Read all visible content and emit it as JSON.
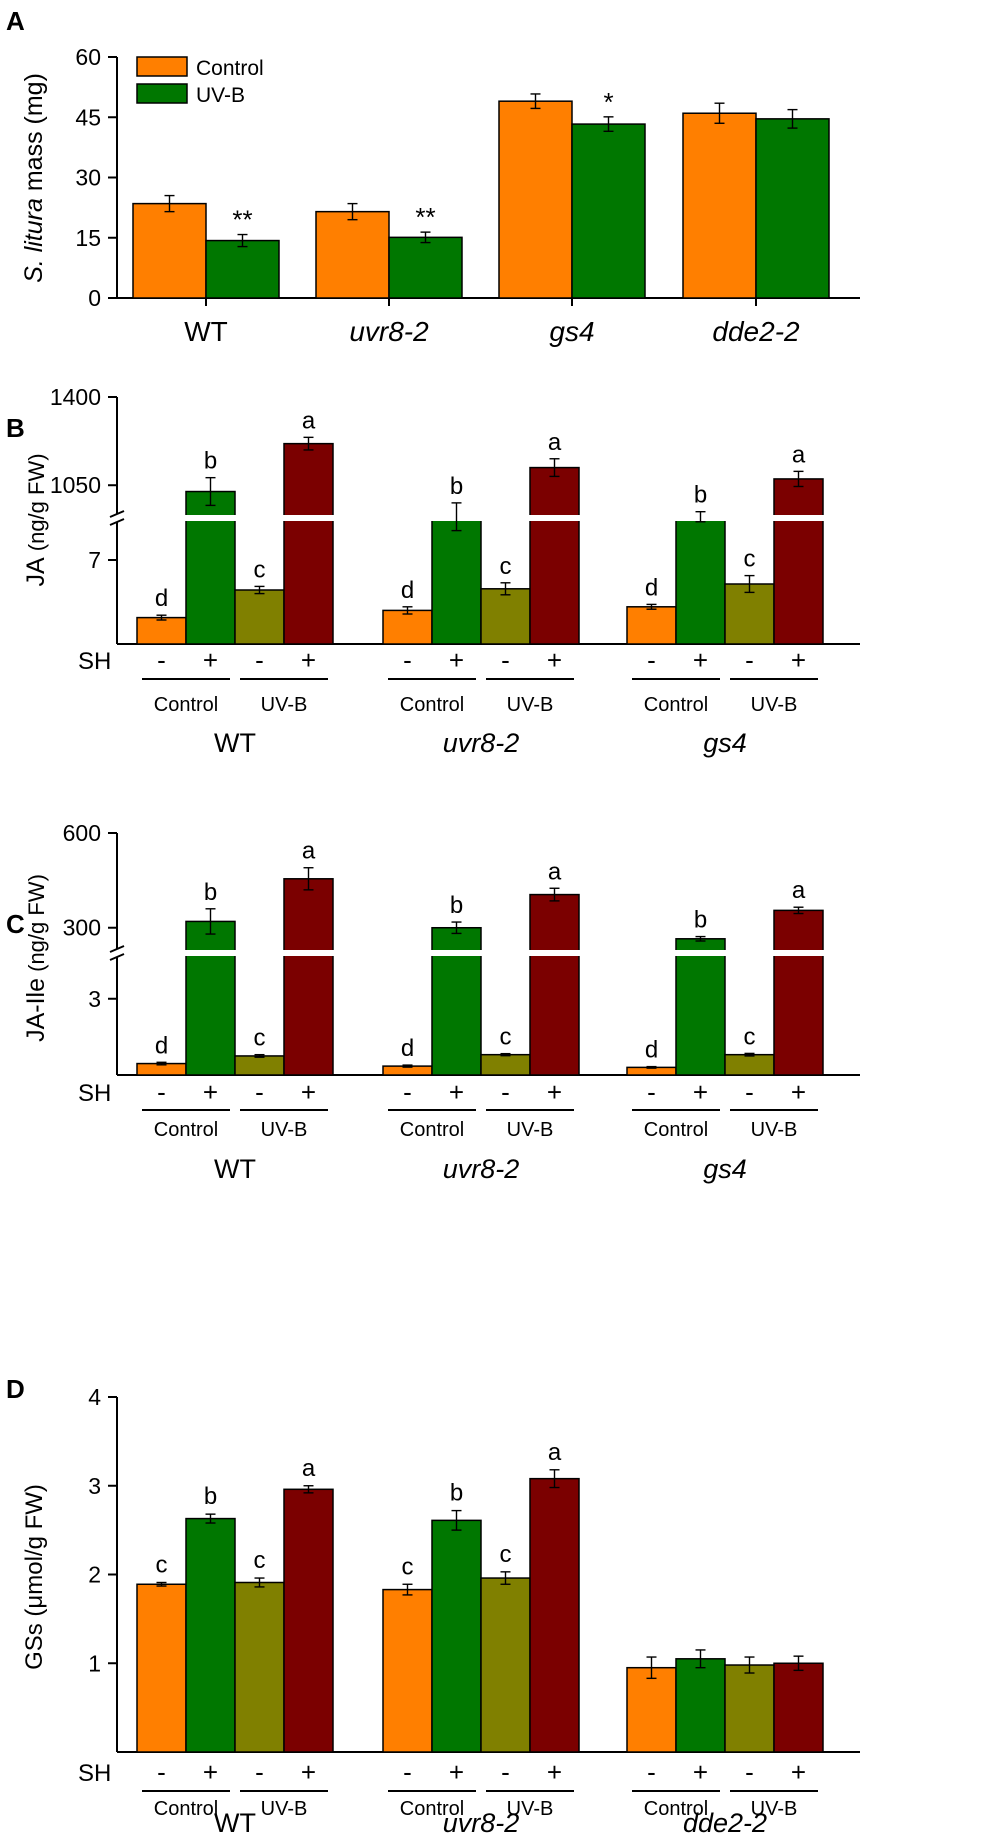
{
  "colors": {
    "control": "#ff7f00",
    "control_sh": "#007700",
    "uvb": "#808000",
    "uvb_sh": "#7b0000",
    "legend_control": "#ff7f00",
    "legend_uvb": "#007700"
  },
  "chart_data": [
    {
      "panel": "A",
      "type": "bar",
      "ylabel_italic": "S. litura",
      "ylabel_rest": " mass (mg)",
      "ylim": [
        0,
        60
      ],
      "yticks": [
        "0",
        "15",
        "30",
        "45",
        "60"
      ],
      "legend": [
        "Control",
        "UV-B"
      ],
      "categories": [
        {
          "label": "WT",
          "italic": false
        },
        {
          "label": "uvr8-2",
          "italic": true
        },
        {
          "label": "gs4",
          "italic": true
        },
        {
          "label": "dde2-2",
          "italic": true
        }
      ],
      "series": [
        {
          "name": "Control",
          "values": [
            23.5,
            21.5,
            49,
            46
          ],
          "errors": [
            2,
            2,
            1.8,
            2.5
          ],
          "labels": [
            "",
            "",
            "",
            ""
          ]
        },
        {
          "name": "UV-B",
          "values": [
            14.3,
            15.1,
            43.3,
            44.6
          ],
          "errors": [
            1.5,
            1.3,
            1.8,
            2.3
          ],
          "labels": [
            "**",
            "**",
            "*",
            ""
          ]
        }
      ]
    },
    {
      "panel": "B",
      "type": "bar",
      "ylabel_main": "JA",
      "ylabel_unit": " (ng/g FW)",
      "broken_axis": true,
      "lower_range": [
        0,
        10.5
      ],
      "upper_range": [
        920,
        1400
      ],
      "yticks_lower": [
        "7"
      ],
      "yticks_upper": [
        "1050",
        "1400"
      ],
      "sh_label": "SH",
      "sh_signs": [
        "-",
        "+",
        "-",
        "+"
      ],
      "treatment_labels": [
        "Control",
        "UV-B"
      ],
      "genotypes": [
        {
          "label": "WT",
          "italic": false,
          "values": [
            2.2,
            1025,
            4.5,
            1215
          ],
          "errors": [
            0.2,
            55,
            0.3,
            25
          ],
          "letters": [
            "d",
            "b",
            "c",
            "a"
          ]
        },
        {
          "label": "uvr8-2",
          "italic": true,
          "values": [
            2.8,
            925,
            4.6,
            1120
          ],
          "errors": [
            0.3,
            55,
            0.5,
            35
          ],
          "letters": [
            "d",
            "b",
            "c",
            "a"
          ]
        },
        {
          "label": "gs4",
          "italic": true,
          "values": [
            3.1,
            925,
            5.0,
            1075
          ],
          "errors": [
            0.2,
            20,
            0.7,
            30
          ],
          "letters": [
            "d",
            "b",
            "c",
            "a"
          ]
        }
      ]
    },
    {
      "panel": "C",
      "type": "bar",
      "ylabel_main": "JA-Ile",
      "ylabel_unit": " (ng/g FW)",
      "broken_axis": true,
      "lower_range": [
        0,
        4.8
      ],
      "upper_range": [
        220,
        600
      ],
      "yticks_lower": [
        "3"
      ],
      "yticks_upper": [
        "300",
        "600"
      ],
      "sh_label": "SH",
      "sh_signs": [
        "-",
        "+",
        "-",
        "+"
      ],
      "treatment_labels": [
        "Control",
        "UV-B"
      ],
      "genotypes": [
        {
          "label": "WT",
          "italic": false,
          "values": [
            0.45,
            320,
            0.75,
            455
          ],
          "errors": [
            0.05,
            40,
            0.05,
            35
          ],
          "letters": [
            "d",
            "b",
            "c",
            "a"
          ]
        },
        {
          "label": "uvr8-2",
          "italic": true,
          "values": [
            0.35,
            300,
            0.8,
            405
          ],
          "errors": [
            0.04,
            18,
            0.04,
            20
          ],
          "letters": [
            "d",
            "b",
            "c",
            "a"
          ]
        },
        {
          "label": "gs4",
          "italic": true,
          "values": [
            0.3,
            265,
            0.8,
            355
          ],
          "errors": [
            0.03,
            7,
            0.05,
            10
          ],
          "letters": [
            "d",
            "b",
            "c",
            "a"
          ]
        }
      ]
    },
    {
      "panel": "D",
      "type": "bar",
      "ylabel": "GSs (μmol/g FW)",
      "ylim": [
        0,
        4
      ],
      "yticks": [
        "1",
        "2",
        "3",
        "4"
      ],
      "sh_label": "SH",
      "sh_signs": [
        "-",
        "+",
        "-",
        "+"
      ],
      "treatment_labels": [
        "Control",
        "UV-B"
      ],
      "genotypes": [
        {
          "label": "WT",
          "italic": false,
          "values": [
            1.89,
            2.63,
            1.91,
            2.96
          ],
          "errors": [
            0.02,
            0.05,
            0.05,
            0.04
          ],
          "letters": [
            "c",
            "b",
            "c",
            "a"
          ]
        },
        {
          "label": "uvr8-2",
          "italic": true,
          "values": [
            1.83,
            2.61,
            1.96,
            3.08
          ],
          "errors": [
            0.06,
            0.11,
            0.07,
            0.1
          ],
          "letters": [
            "c",
            "b",
            "c",
            "a"
          ]
        },
        {
          "label": "dde2-2",
          "italic": true,
          "values": [
            0.95,
            1.05,
            0.98,
            1.0
          ],
          "errors": [
            0.12,
            0.1,
            0.09,
            0.08
          ],
          "letters": [
            "",
            "",
            "",
            ""
          ]
        }
      ]
    }
  ]
}
